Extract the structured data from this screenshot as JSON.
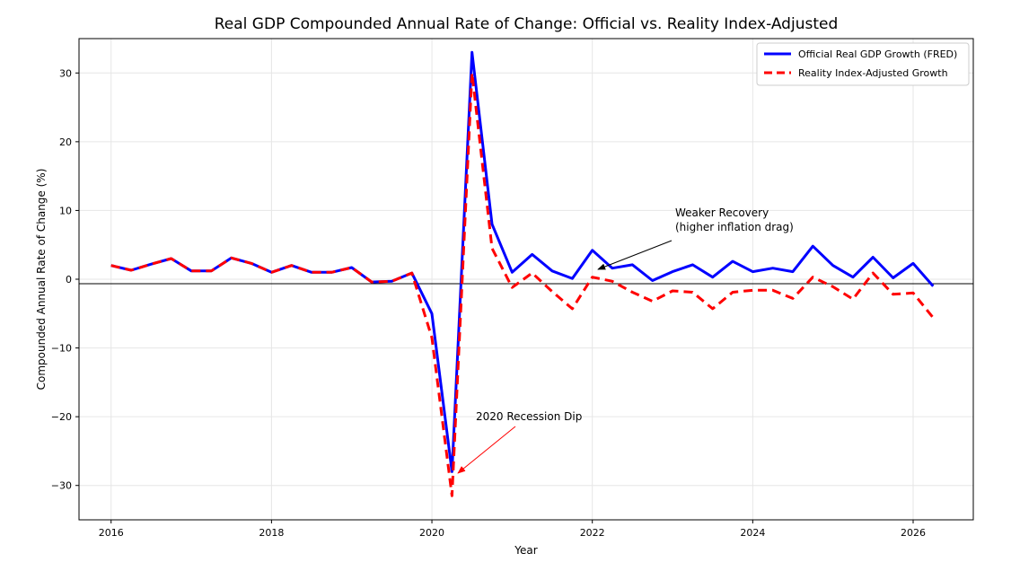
{
  "chart_data": {
    "type": "line",
    "title": "Real GDP Compounded Annual Rate of Change: Official vs. Reality Index-Adjusted",
    "xlabel": "Year",
    "ylabel": "Compounded Annual Rate of Change (%)",
    "xlim": [
      2015.6,
      2026.75
    ],
    "ylim": [
      -35,
      35
    ],
    "xticks": [
      2016,
      2018,
      2020,
      2022,
      2024,
      2026
    ],
    "yticks": [
      -30,
      -20,
      -10,
      0,
      10,
      20,
      30
    ],
    "ytick_labels": [
      "−30",
      "−20",
      "−10",
      "0",
      "10",
      "20",
      "30"
    ],
    "grid": true,
    "legend_position": "top-right",
    "x": [
      2016.0,
      2016.25,
      2016.5,
      2016.75,
      2017.0,
      2017.25,
      2017.5,
      2017.75,
      2018.0,
      2018.25,
      2018.5,
      2018.75,
      2019.0,
      2019.25,
      2019.5,
      2019.75,
      2020.0,
      2020.25,
      2020.5,
      2020.75,
      2021.0,
      2021.25,
      2021.5,
      2021.75,
      2022.0,
      2022.25,
      2022.5,
      2022.75,
      2023.0,
      2023.25,
      2023.5,
      2023.75,
      2024.0,
      2024.25,
      2024.5,
      2024.75,
      2025.0,
      2025.25,
      2025.5,
      2025.75,
      2026.0,
      2026.25
    ],
    "series": [
      {
        "name": "Official Real GDP Growth (FRED)",
        "color": "#0000ff",
        "style": "solid",
        "values": [
          2.0,
          1.3,
          2.2,
          3.0,
          1.2,
          1.2,
          3.1,
          2.3,
          1.0,
          2.0,
          1.0,
          1.0,
          1.7,
          -0.4,
          -0.3,
          0.9,
          -5.0,
          -28.0,
          33.0,
          8.0,
          1.0,
          3.6,
          1.2,
          0.1,
          4.2,
          1.6,
          2.1,
          -0.2,
          1.1,
          2.1,
          0.3,
          2.6,
          1.1,
          1.6,
          1.1,
          4.8,
          2.0,
          0.3,
          3.2,
          0.2,
          2.3,
          -1.0
        ]
      },
      {
        "name": "Reality Index-Adjusted Growth",
        "color": "#ff0000",
        "style": "dashed",
        "values": [
          2.0,
          1.3,
          2.2,
          3.0,
          1.2,
          1.2,
          3.1,
          2.3,
          1.0,
          2.0,
          1.0,
          1.0,
          1.7,
          -0.4,
          -0.3,
          0.9,
          -8.5,
          -31.5,
          30.0,
          4.5,
          -1.2,
          0.9,
          -1.8,
          -4.3,
          0.3,
          -0.3,
          -1.9,
          -3.2,
          -1.7,
          -1.9,
          -4.3,
          -1.9,
          -1.6,
          -1.6,
          -2.8,
          0.3,
          -1.1,
          -2.9,
          0.9,
          -2.2,
          -2.0,
          -5.6
        ]
      }
    ],
    "annotations": [
      {
        "name": "recession",
        "text": "2020 Recession Dip",
        "point": [
          2020.25,
          -28.0
        ],
        "text_pos": [
          2020.5,
          -20.0
        ],
        "color": "#ff0000"
      },
      {
        "name": "recovery",
        "line1": "Weaker Recovery",
        "line2": "(higher inflation drag)",
        "point": [
          2022.0,
          2.0
        ],
        "text_pos": [
          2023.0,
          9.0
        ],
        "color": "#000000"
      }
    ]
  }
}
